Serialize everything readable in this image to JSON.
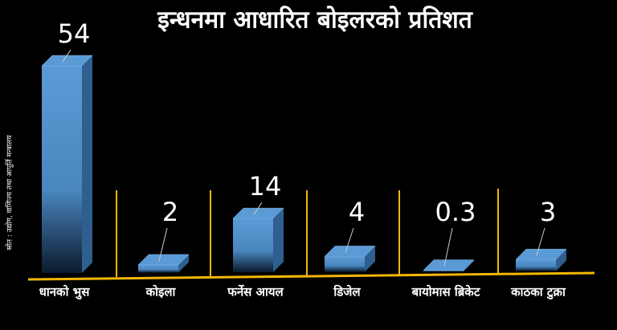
{
  "chart_data": {
    "type": "bar",
    "title": "इन्धनमा आधारित बोइलरको प्रतिशत",
    "source": "स्रोत : उद्योग, वाणिज्य तथा आपूर्ति मन्त्रालय",
    "categories": [
      "धानको भुस",
      "कोइला",
      "फर्नेस आयल",
      "डिजेल",
      "बायोमास ब्रिकेट",
      "काठका टुक्रा"
    ],
    "values": [
      54,
      2,
      14,
      4,
      0.3,
      3
    ],
    "color": "#5b9bd5"
  }
}
